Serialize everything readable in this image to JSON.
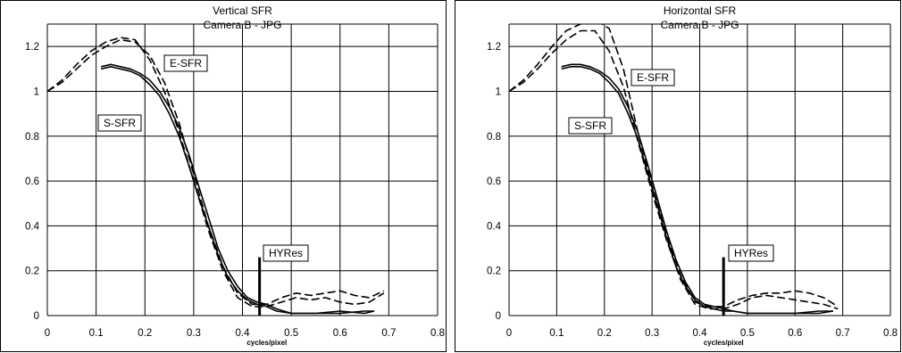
{
  "chart_data": [
    {
      "type": "line",
      "title": "Vertical SFR",
      "subtitle": "Camera B - JPG",
      "xlabel": "cycles/pixel",
      "ylabel": "",
      "xlim": [
        0,
        0.8
      ],
      "ylim": [
        0,
        1.3
      ],
      "xticks": [
        "0",
        "0.1",
        "0.2",
        "0.3",
        "0.4",
        "0.5",
        "0.6",
        "0.7",
        "0.8"
      ],
      "yticks": [
        "0",
        "0.2",
        "0.4",
        "0.6",
        "0.8",
        "1",
        "1.2"
      ],
      "grid": true,
      "annotations": [
        "E-SFR",
        "S-SFR",
        "HYRes"
      ],
      "hyres_marker": {
        "x": 0.435,
        "y_top": 0.26
      },
      "series": [
        {
          "style": "dashed",
          "x": [
            0,
            0.03,
            0.06,
            0.09,
            0.12,
            0.15,
            0.18,
            0.21,
            0.24,
            0.27,
            0.3,
            0.33,
            0.36,
            0.39,
            0.42,
            0.45,
            0.48,
            0.51,
            0.54,
            0.57,
            0.6,
            0.63,
            0.66,
            0.69
          ],
          "y": [
            1.0,
            1.04,
            1.1,
            1.16,
            1.2,
            1.23,
            1.22,
            1.16,
            1.04,
            0.86,
            0.63,
            0.4,
            0.22,
            0.1,
            0.05,
            0.05,
            0.08,
            0.1,
            0.09,
            0.1,
            0.11,
            0.09,
            0.08,
            0.11
          ]
        },
        {
          "style": "dashed",
          "x": [
            0,
            0.03,
            0.06,
            0.09,
            0.12,
            0.15,
            0.18,
            0.21,
            0.24,
            0.27,
            0.3,
            0.33,
            0.36,
            0.39,
            0.42,
            0.45,
            0.48,
            0.51,
            0.54,
            0.57,
            0.6,
            0.63,
            0.66,
            0.69
          ],
          "y": [
            1.0,
            1.05,
            1.12,
            1.18,
            1.22,
            1.24,
            1.23,
            1.14,
            1.0,
            0.82,
            0.6,
            0.38,
            0.2,
            0.08,
            0.04,
            0.04,
            0.06,
            0.08,
            0.07,
            0.08,
            0.06,
            0.05,
            0.06,
            0.1
          ]
        },
        {
          "style": "solid",
          "x": [
            0.11,
            0.13,
            0.15,
            0.17,
            0.19,
            0.21,
            0.23,
            0.25,
            0.27,
            0.29,
            0.31,
            0.33,
            0.35,
            0.37,
            0.39,
            0.41,
            0.43,
            0.45,
            0.47,
            0.5,
            0.55,
            0.6,
            0.65,
            0.67
          ],
          "y": [
            1.11,
            1.12,
            1.11,
            1.1,
            1.08,
            1.05,
            1.0,
            0.93,
            0.84,
            0.72,
            0.58,
            0.44,
            0.3,
            0.2,
            0.13,
            0.08,
            0.06,
            0.05,
            0.03,
            0.01,
            0.01,
            0.02,
            0.01,
            0.02
          ]
        },
        {
          "style": "solid",
          "x": [
            0.11,
            0.13,
            0.15,
            0.17,
            0.19,
            0.21,
            0.23,
            0.25,
            0.27,
            0.29,
            0.31,
            0.33,
            0.35,
            0.37,
            0.39,
            0.41,
            0.43,
            0.45,
            0.47,
            0.5,
            0.55,
            0.6,
            0.65,
            0.67
          ],
          "y": [
            1.1,
            1.11,
            1.1,
            1.09,
            1.07,
            1.03,
            0.98,
            0.9,
            0.8,
            0.67,
            0.53,
            0.4,
            0.27,
            0.17,
            0.11,
            0.07,
            0.05,
            0.04,
            0.02,
            0.01,
            0.01,
            0.01,
            0.02,
            0.02
          ]
        }
      ]
    },
    {
      "type": "line",
      "title": "Horizontal SFR",
      "subtitle": "Camera B - JPG",
      "xlabel": "cycles/pixel",
      "ylabel": "",
      "xlim": [
        0,
        0.8
      ],
      "ylim": [
        0,
        1.3
      ],
      "xticks": [
        "0",
        "0.1",
        "0.2",
        "0.3",
        "0.4",
        "0.5",
        "0.6",
        "0.7",
        "0.8"
      ],
      "yticks": [
        "0",
        "0.2",
        "0.4",
        "0.6",
        "0.8",
        "1",
        "1.2"
      ],
      "grid": true,
      "annotations": [
        "E-SFR",
        "S-SFR",
        "HYRes"
      ],
      "hyres_marker": {
        "x": 0.45,
        "y_top": 0.26
      },
      "series": [
        {
          "style": "dashed",
          "x": [
            0,
            0.03,
            0.06,
            0.09,
            0.12,
            0.15,
            0.18,
            0.21,
            0.24,
            0.27,
            0.3,
            0.33,
            0.36,
            0.39,
            0.42,
            0.45,
            0.48,
            0.51,
            0.54,
            0.57,
            0.6,
            0.63,
            0.66,
            0.69
          ],
          "y": [
            1.0,
            1.05,
            1.12,
            1.2,
            1.27,
            1.3,
            1.32,
            1.28,
            1.1,
            0.82,
            0.58,
            0.36,
            0.18,
            0.06,
            0.04,
            0.04,
            0.07,
            0.09,
            0.1,
            0.1,
            0.11,
            0.1,
            0.08,
            0.04
          ]
        },
        {
          "style": "dashed",
          "x": [
            0,
            0.03,
            0.06,
            0.09,
            0.12,
            0.15,
            0.18,
            0.21,
            0.24,
            0.27,
            0.3,
            0.33,
            0.36,
            0.39,
            0.42,
            0.45,
            0.48,
            0.51,
            0.54,
            0.57,
            0.6,
            0.63,
            0.66,
            0.69
          ],
          "y": [
            1.0,
            1.04,
            1.1,
            1.17,
            1.23,
            1.27,
            1.27,
            1.18,
            1.02,
            0.78,
            0.55,
            0.34,
            0.16,
            0.05,
            0.03,
            0.03,
            0.05,
            0.08,
            0.09,
            0.08,
            0.07,
            0.06,
            0.05,
            0.03
          ]
        },
        {
          "style": "solid",
          "x": [
            0.11,
            0.13,
            0.15,
            0.17,
            0.19,
            0.21,
            0.23,
            0.25,
            0.27,
            0.29,
            0.31,
            0.33,
            0.35,
            0.37,
            0.39,
            0.41,
            0.43,
            0.45,
            0.47,
            0.5,
            0.55,
            0.6,
            0.65,
            0.68
          ],
          "y": [
            1.11,
            1.12,
            1.12,
            1.11,
            1.09,
            1.06,
            1.01,
            0.93,
            0.82,
            0.68,
            0.53,
            0.38,
            0.25,
            0.15,
            0.08,
            0.05,
            0.04,
            0.03,
            0.02,
            0.01,
            0.01,
            0.01,
            0.02,
            0.02
          ]
        },
        {
          "style": "solid",
          "x": [
            0.11,
            0.13,
            0.15,
            0.17,
            0.19,
            0.21,
            0.23,
            0.25,
            0.27,
            0.29,
            0.31,
            0.33,
            0.35,
            0.37,
            0.39,
            0.41,
            0.43,
            0.45,
            0.47,
            0.5,
            0.55,
            0.6,
            0.65,
            0.68
          ],
          "y": [
            1.1,
            1.11,
            1.11,
            1.1,
            1.08,
            1.04,
            0.99,
            0.9,
            0.79,
            0.64,
            0.5,
            0.35,
            0.22,
            0.13,
            0.07,
            0.04,
            0.03,
            0.02,
            0.02,
            0.01,
            0.01,
            0.01,
            0.01,
            0.02
          ]
        }
      ]
    }
  ]
}
